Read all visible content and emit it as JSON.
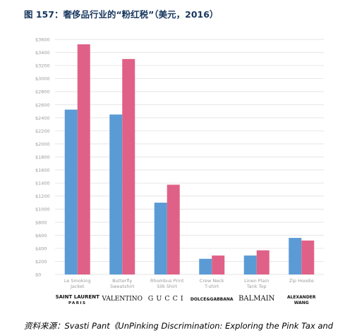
{
  "figure_title": "图 157：奢侈品行业的“粉红税”（美元，2016）",
  "source_text": "资料来源：Svasti Pant《UnPinking Discrimination: Exploring the Pink Tax and",
  "colors": {
    "series_men": "#5b9bd5",
    "series_women": "#e06188",
    "grid": "#e6e6e6",
    "axis_text": "#9a9a9a"
  },
  "chart_data": {
    "type": "bar",
    "categories": [
      "Le Smoking\nJacket",
      "Butterfly\nSweatshirt",
      "Rhombus Print\nSilk Shirt",
      "Crew Neck\nT-shirt",
      "Linen Plain\nTank Top",
      "Zip Hoodie"
    ],
    "brands": [
      "SAINT LAURENT\nPARIS",
      "VALENTINO",
      "GUCCI",
      "DOLCE&GABBANA",
      "BALMAIN",
      "ALEXANDER\nWANG"
    ],
    "series": [
      {
        "values": [
          2525,
          2450,
          1100,
          240,
          290,
          560
        ]
      },
      {
        "values": [
          3525,
          3300,
          1375,
          290,
          370,
          520
        ]
      }
    ],
    "ylim": [
      0,
      3600
    ],
    "yticks": [
      "$0",
      "$200",
      "$400",
      "$600",
      "$800",
      "$1000",
      "$1200",
      "$1400",
      "$1600",
      "$1800",
      "$2000",
      "$2200",
      "$2400",
      "$2600",
      "$2800",
      "$3000",
      "$3200",
      "$3400",
      "$3600"
    ],
    "grid": true
  }
}
